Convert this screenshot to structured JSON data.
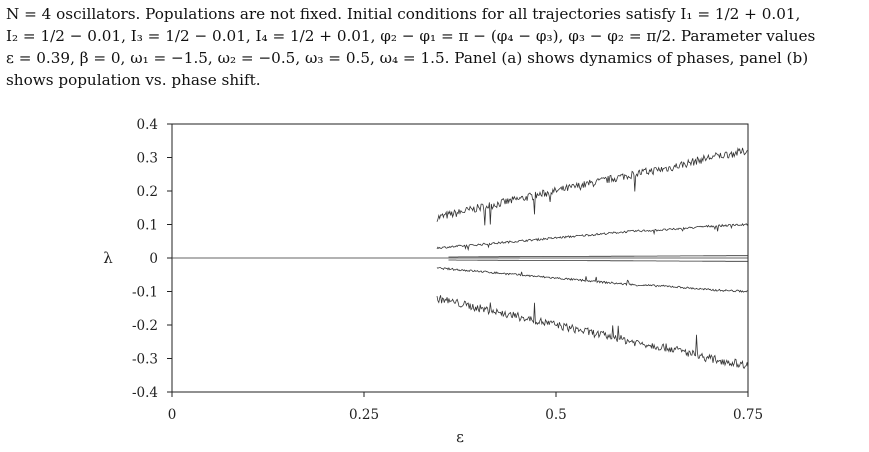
{
  "caption": {
    "line1": "N = 4 oscillators. Populations are not fixed. Initial conditions for all trajectories satisfy I₁ = 1/2 + 0.01,",
    "line2": "I₂ = 1/2 − 0.01, I₃ = 1/2 − 0.01, I₄ = 1/2 + 0.01, φ₂ − φ₁ = π − (φ₄ − φ₃), φ₃ − φ₂ = π/2. Parameter values",
    "line3": "ε = 0.39, β = 0, ω₁ = −1.5, ω₂ = −0.5, ω₃ = 0.5, ω₄ = 1.5. Panel (a) shows dynamics of phases, panel (b)",
    "line4": "shows population vs. phase shift."
  },
  "chart_data": {
    "type": "line",
    "title": "",
    "xlabel": "ε",
    "ylabel": "λ",
    "xlim": [
      0,
      0.75
    ],
    "ylim": [
      -0.4,
      0.4
    ],
    "x_ticks": [
      0,
      0.25,
      0.5,
      0.75
    ],
    "x_tick_labels": [
      "0",
      "0.25",
      "0.5",
      "0.75"
    ],
    "y_ticks": [
      0.4,
      0.3,
      0.2,
      0.1,
      0,
      -0.1,
      -0.2,
      -0.3,
      -0.4
    ],
    "y_tick_labels": [
      "0.4",
      "0.3",
      "0.2",
      "0.1",
      "0",
      "-0.1",
      "-0.2",
      "-0.3",
      "-0.4"
    ],
    "grid": false,
    "legend": "none",
    "series": [
      {
        "x": [
          0.345,
          0.4,
          0.45,
          0.5,
          0.55,
          0.6,
          0.65,
          0.7,
          0.75
        ],
        "y": [
          0.12,
          0.15,
          0.175,
          0.2,
          0.225,
          0.25,
          0.27,
          0.3,
          0.32
        ]
      },
      {
        "x": [
          0.345,
          0.4,
          0.45,
          0.5,
          0.55,
          0.6,
          0.65,
          0.7,
          0.75
        ],
        "y": [
          0.03,
          0.04,
          0.05,
          0.06,
          0.07,
          0.08,
          0.085,
          0.095,
          0.1
        ]
      },
      {
        "x": [
          0.36,
          0.45,
          0.55,
          0.65,
          0.75
        ],
        "y": [
          0.003,
          0.004,
          0.005,
          0.006,
          0.007
        ]
      },
      {
        "x": [
          0,
          0.25,
          0.5,
          0.75
        ],
        "y": [
          0,
          0,
          0,
          0
        ]
      },
      {
        "x": [
          0.36,
          0.45,
          0.55,
          0.65,
          0.75
        ],
        "y": [
          -0.006,
          -0.007,
          -0.008,
          -0.009,
          -0.01
        ]
      },
      {
        "x": [
          0.345,
          0.4,
          0.45,
          0.5,
          0.55,
          0.6,
          0.65,
          0.7,
          0.75
        ],
        "y": [
          -0.03,
          -0.04,
          -0.05,
          -0.06,
          -0.07,
          -0.08,
          -0.085,
          -0.095,
          -0.1
        ]
      },
      {
        "x": [
          0.345,
          0.4,
          0.45,
          0.5,
          0.55,
          0.6,
          0.65,
          0.7,
          0.75
        ],
        "y": [
          -0.12,
          -0.15,
          -0.175,
          -0.2,
          -0.225,
          -0.25,
          -0.27,
          -0.3,
          -0.32
        ]
      }
    ]
  }
}
